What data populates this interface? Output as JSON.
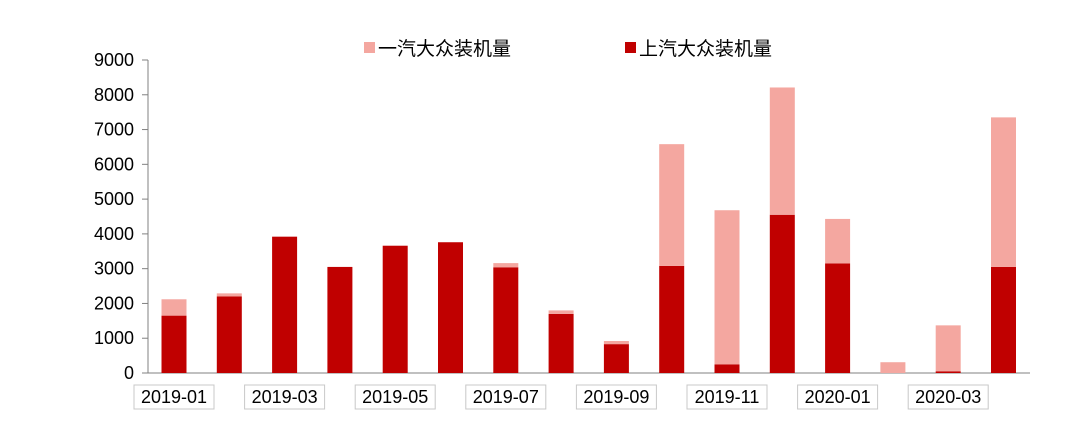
{
  "chart_data": {
    "type": "bar",
    "stacked": true,
    "categories": [
      "2019-01",
      "2019-02",
      "2019-03",
      "2019-04",
      "2019-05",
      "2019-06",
      "2019-07",
      "2019-08",
      "2019-09",
      "2019-10",
      "2019-11",
      "2019-12",
      "2020-01",
      "2020-02",
      "2020-03",
      "2020-04"
    ],
    "x_tick_labels": [
      "2019-01",
      "2019-03",
      "2019-05",
      "2019-07",
      "2019-09",
      "2019-11",
      "2020-01",
      "2020-03"
    ],
    "series": [
      {
        "name": "上汽大众装机量",
        "color": "#c00000",
        "values": [
          1650,
          2200,
          3920,
          3050,
          3660,
          3760,
          3040,
          1700,
          830,
          3080,
          250,
          4550,
          3150,
          0,
          50,
          3050
        ]
      },
      {
        "name": "一汽大众装机量",
        "color": "#f4a7a0",
        "values": [
          470,
          90,
          0,
          0,
          0,
          0,
          120,
          100,
          90,
          3500,
          4430,
          3660,
          1280,
          310,
          1320,
          4300
        ]
      }
    ],
    "ylim": [
      0,
      9000
    ],
    "y_ticks": [
      0,
      1000,
      2000,
      3000,
      4000,
      5000,
      6000,
      7000,
      8000,
      9000
    ],
    "legend_position": "top",
    "grid": false,
    "title": "",
    "xlabel": "",
    "ylabel": ""
  }
}
